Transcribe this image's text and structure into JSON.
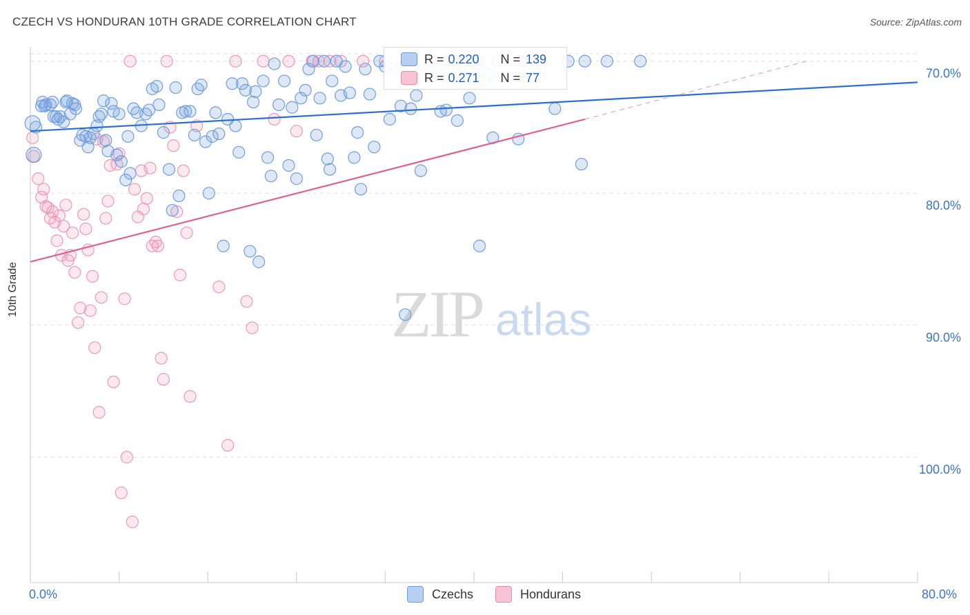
{
  "header": {
    "title": "CZECH VS HONDURAN 10TH GRADE CORRELATION CHART",
    "source": "Source: ZipAtlas.com"
  },
  "watermark": {
    "zip": "ZIP",
    "atlas": "atlas"
  },
  "legend_top": {
    "rows": [
      {
        "r_label": "R =",
        "r_value": "0.220",
        "n_label": "N =",
        "n_value": "139"
      },
      {
        "r_label": "R =",
        "r_value": "0.271",
        "n_label": "N =",
        "n_value": "77"
      }
    ]
  },
  "legend_bottom": {
    "items": [
      "Czechs",
      "Hondurans"
    ]
  },
  "axis_labels": {
    "x_left": "0.0%",
    "x_right": "80.0%",
    "y_ticks": [
      "100.0%",
      "90.0%",
      "80.0%",
      "70.0%"
    ]
  },
  "chart_data": {
    "type": "scatter",
    "title": "CZECH VS HONDURAN 10TH GRADE CORRELATION CHART",
    "xlabel": "",
    "ylabel": "10th Grade",
    "xlim": [
      0,
      80
    ],
    "ylim": [
      60.5,
      101.5
    ],
    "y_ticks": [
      70,
      80,
      90,
      100
    ],
    "grid": "horizontal dashed",
    "legend_position": "top-center",
    "colors": {
      "czechs": "#6b9bdc",
      "hondurans": "#e88aa8",
      "czech_line": "#2a6fd0",
      "honduran_line": "#e0608a"
    },
    "series": [
      {
        "name": "Czechs",
        "r": 0.22,
        "n": 139,
        "trend": {
          "x": [
            0,
            80
          ],
          "y": [
            94.7,
            98.4
          ]
        },
        "points": [
          [
            0.2,
            95.3
          ],
          [
            0.3,
            92.9
          ],
          [
            0.5,
            95.0
          ],
          [
            1.0,
            96.6
          ],
          [
            1.1,
            96.9
          ],
          [
            1.3,
            96.6
          ],
          [
            1.4,
            96.7
          ],
          [
            1.8,
            96.7
          ],
          [
            2.0,
            96.9
          ],
          [
            2.1,
            95.8
          ],
          [
            2.3,
            95.8
          ],
          [
            2.5,
            95.6
          ],
          [
            2.7,
            95.8
          ],
          [
            3.0,
            95.4
          ],
          [
            3.2,
            96.9
          ],
          [
            3.3,
            97.0
          ],
          [
            3.6,
            96.0
          ],
          [
            3.8,
            96.8
          ],
          [
            4.0,
            96.7
          ],
          [
            4.1,
            96.4
          ],
          [
            4.5,
            94.0
          ],
          [
            4.7,
            94.4
          ],
          [
            5.0,
            94.3
          ],
          [
            5.2,
            93.5
          ],
          [
            5.4,
            94.2
          ],
          [
            5.7,
            94.5
          ],
          [
            6.0,
            95.1
          ],
          [
            6.2,
            95.8
          ],
          [
            6.4,
            96.0
          ],
          [
            6.6,
            97.0
          ],
          [
            6.8,
            94.0
          ],
          [
            7.0,
            93.2
          ],
          [
            7.3,
            96.8
          ],
          [
            7.5,
            96.2
          ],
          [
            7.8,
            92.9
          ],
          [
            8.0,
            96.0
          ],
          [
            8.2,
            92.4
          ],
          [
            8.6,
            91.0
          ],
          [
            8.8,
            94.3
          ],
          [
            9.0,
            91.5
          ],
          [
            9.3,
            96.4
          ],
          [
            9.6,
            96.1
          ],
          [
            10.0,
            95.1
          ],
          [
            10.4,
            96.0
          ],
          [
            10.7,
            96.3
          ],
          [
            11.0,
            97.9
          ],
          [
            11.4,
            98.1
          ],
          [
            11.6,
            96.7
          ],
          [
            12.0,
            94.6
          ],
          [
            12.5,
            91.8
          ],
          [
            12.8,
            88.7
          ],
          [
            13.1,
            98.0
          ],
          [
            13.4,
            89.8
          ],
          [
            13.7,
            96.1
          ],
          [
            14.0,
            96.2
          ],
          [
            14.4,
            96.2
          ],
          [
            14.8,
            94.4
          ],
          [
            15.1,
            97.9
          ],
          [
            15.4,
            98.2
          ],
          [
            15.8,
            93.9
          ],
          [
            16.1,
            90.0
          ],
          [
            16.4,
            94.3
          ],
          [
            16.7,
            96.1
          ],
          [
            17.0,
            94.5
          ],
          [
            17.4,
            86.0
          ],
          [
            17.8,
            95.6
          ],
          [
            18.2,
            98.3
          ],
          [
            18.5,
            95.1
          ],
          [
            18.8,
            93.1
          ],
          [
            19.1,
            98.3
          ],
          [
            19.4,
            97.8
          ],
          [
            19.8,
            85.6
          ],
          [
            20.1,
            96.9
          ],
          [
            20.3,
            97.7
          ],
          [
            20.6,
            84.8
          ],
          [
            21.0,
            98.5
          ],
          [
            21.4,
            92.7
          ],
          [
            21.7,
            91.3
          ],
          [
            22.0,
            99.8
          ],
          [
            22.4,
            96.7
          ],
          [
            22.9,
            98.5
          ],
          [
            23.3,
            92.1
          ],
          [
            23.6,
            96.5
          ],
          [
            24.0,
            91.1
          ],
          [
            24.4,
            97.2
          ],
          [
            24.8,
            97.8
          ],
          [
            25.1,
            99.4
          ],
          [
            25.5,
            100.0
          ],
          [
            25.8,
            94.4
          ],
          [
            26.1,
            97.2
          ],
          [
            26.5,
            100.0
          ],
          [
            26.8,
            92.6
          ],
          [
            27.0,
            91.8
          ],
          [
            27.2,
            98.5
          ],
          [
            27.6,
            100.0
          ],
          [
            28.0,
            97.4
          ],
          [
            28.4,
            99.6
          ],
          [
            28.8,
            97.6
          ],
          [
            29.2,
            92.7
          ],
          [
            29.5,
            94.6
          ],
          [
            29.8,
            90.3
          ],
          [
            30.2,
            99.4
          ],
          [
            30.6,
            97.5
          ],
          [
            31.0,
            93.5
          ],
          [
            31.5,
            100.0
          ],
          [
            32.0,
            99.6
          ],
          [
            32.4,
            95.6
          ],
          [
            33.0,
            99.3
          ],
          [
            33.4,
            96.6
          ],
          [
            33.8,
            80.8
          ],
          [
            34.0,
            98.6
          ],
          [
            34.3,
            96.4
          ],
          [
            34.8,
            97.4
          ],
          [
            35.2,
            91.7
          ],
          [
            35.8,
            99.0
          ],
          [
            36.0,
            100.0
          ],
          [
            36.8,
            99.6
          ],
          [
            37.0,
            96.2
          ],
          [
            37.5,
            96.3
          ],
          [
            38.0,
            100.0
          ],
          [
            38.5,
            95.5
          ],
          [
            39.0,
            100.0
          ],
          [
            39.6,
            97.2
          ],
          [
            40.2,
            99.8
          ],
          [
            40.5,
            86.0
          ],
          [
            41.0,
            98.5
          ],
          [
            41.3,
            99.0
          ],
          [
            41.7,
            94.2
          ],
          [
            42.1,
            100.0
          ],
          [
            44.0,
            94.1
          ],
          [
            44.2,
            100.0
          ],
          [
            46.0,
            99.2
          ],
          [
            47.3,
            96.4
          ],
          [
            48.5,
            100.0
          ],
          [
            49.7,
            92.2
          ],
          [
            50.0,
            100.0
          ],
          [
            52.0,
            100.0
          ],
          [
            55.0,
            100.0
          ]
        ]
      },
      {
        "name": "Hondurans",
        "r": 0.271,
        "n": 77,
        "trend": {
          "x": [
            0,
            50
          ],
          "y": [
            84.8,
            95.6
          ]
        },
        "trend_extension": {
          "x": [
            50,
            70
          ],
          "y": [
            95.6,
            100.0
          ]
        },
        "points": [
          [
            0.2,
            94.2
          ],
          [
            0.3,
            92.8
          ],
          [
            0.7,
            91.1
          ],
          [
            1.0,
            89.7
          ],
          [
            1.2,
            90.3
          ],
          [
            1.4,
            89.0
          ],
          [
            1.6,
            88.9
          ],
          [
            1.8,
            88.1
          ],
          [
            2.0,
            88.6
          ],
          [
            2.2,
            87.8
          ],
          [
            2.4,
            86.4
          ],
          [
            2.6,
            88.3
          ],
          [
            2.8,
            85.3
          ],
          [
            3.0,
            87.5
          ],
          [
            3.2,
            89.1
          ],
          [
            3.4,
            84.9
          ],
          [
            3.6,
            85.3
          ],
          [
            3.8,
            87.0
          ],
          [
            4.0,
            84.0
          ],
          [
            4.3,
            80.2
          ],
          [
            4.5,
            81.3
          ],
          [
            4.8,
            88.4
          ],
          [
            5.0,
            87.3
          ],
          [
            5.2,
            85.7
          ],
          [
            5.4,
            81.1
          ],
          [
            5.6,
            83.7
          ],
          [
            5.8,
            78.3
          ],
          [
            6.0,
            94.1
          ],
          [
            6.2,
            73.4
          ],
          [
            6.4,
            82.1
          ],
          [
            6.6,
            93.9
          ],
          [
            6.8,
            88.1
          ],
          [
            7.0,
            89.4
          ],
          [
            7.2,
            92.1
          ],
          [
            7.5,
            75.7
          ],
          [
            7.8,
            92.2
          ],
          [
            8.0,
            93.0
          ],
          [
            8.2,
            67.3
          ],
          [
            8.5,
            82.0
          ],
          [
            8.7,
            70.0
          ],
          [
            9.0,
            100.0
          ],
          [
            9.2,
            65.1
          ],
          [
            9.4,
            90.3
          ],
          [
            9.7,
            88.2
          ],
          [
            10.0,
            91.7
          ],
          [
            10.2,
            88.8
          ],
          [
            10.5,
            89.6
          ],
          [
            10.8,
            91.9
          ],
          [
            11.0,
            86.0
          ],
          [
            11.3,
            86.3
          ],
          [
            11.5,
            86.0
          ],
          [
            11.8,
            77.5
          ],
          [
            12.0,
            75.9
          ],
          [
            12.3,
            100.0
          ],
          [
            12.6,
            95.0
          ],
          [
            12.9,
            93.6
          ],
          [
            13.2,
            88.6
          ],
          [
            13.5,
            83.8
          ],
          [
            13.8,
            91.7
          ],
          [
            14.1,
            87.0
          ],
          [
            14.4,
            74.6
          ],
          [
            15.0,
            95.1
          ],
          [
            17.0,
            82.9
          ],
          [
            17.8,
            70.9
          ],
          [
            18.5,
            100.0
          ],
          [
            19.5,
            81.8
          ],
          [
            20.0,
            79.8
          ],
          [
            21.0,
            100.0
          ],
          [
            22.0,
            95.6
          ],
          [
            23.3,
            100.0
          ],
          [
            24.0,
            94.7
          ],
          [
            25.4,
            100.0
          ],
          [
            26.0,
            100.0
          ],
          [
            27.0,
            100.0
          ],
          [
            28.0,
            100.0
          ],
          [
            30.0,
            100.0
          ],
          [
            32.0,
            100.0
          ]
        ]
      }
    ]
  }
}
